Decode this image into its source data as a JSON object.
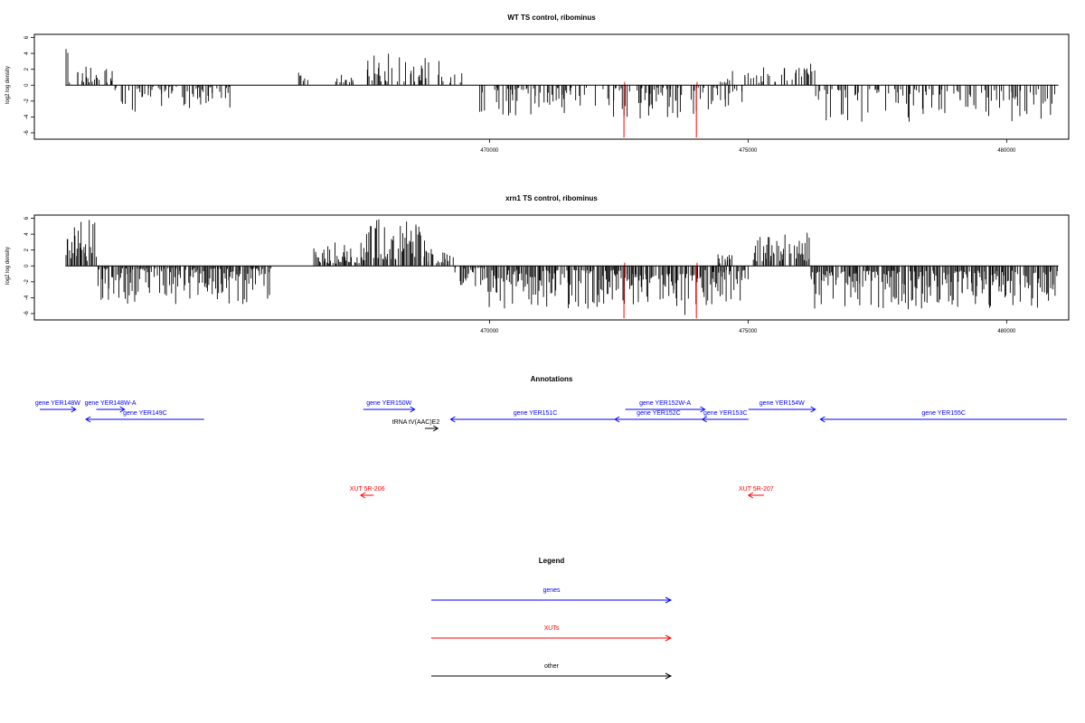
{
  "chart_data": [
    {
      "type": "bar",
      "title": "WT TS control, ribominus",
      "xlabel": "",
      "ylabel": "log2 log density",
      "xlim": [
        461200,
        481200
      ],
      "ylim": [
        -6.8,
        6.4
      ],
      "xticks": [
        470000,
        475000,
        480000
      ],
      "yticks": [
        6,
        4,
        2,
        0,
        -2,
        -4,
        -6
      ],
      "red_lines": [
        472600,
        474000
      ],
      "series_color": "#000000",
      "red_color": "#ff0000",
      "seed": 7,
      "density": 0.45,
      "regions": [
        {
          "x": [
            461800,
            462200
          ],
          "sign": 1,
          "min": 0.3,
          "max": 5.3
        },
        {
          "x": [
            462200,
            462750
          ],
          "sign": 1,
          "min": 0.3,
          "max": 2.2
        },
        {
          "x": [
            462750,
            463400
          ],
          "sign": -1,
          "min": 0.3,
          "max": 3.8
        },
        {
          "x": [
            463400,
            465000
          ],
          "sign": -1,
          "min": 0.2,
          "max": 3.0
        },
        {
          "x": [
            466300,
            466500
          ],
          "sign": 1,
          "min": 0.5,
          "max": 2.2
        },
        {
          "x": [
            467000,
            467400
          ],
          "sign": 1,
          "min": 0.3,
          "max": 1.6
        },
        {
          "x": [
            467600,
            468900
          ],
          "sign": 1,
          "min": 0.4,
          "max": 4.0
        },
        {
          "x": [
            469000,
            469500
          ],
          "sign": 1,
          "min": 0.3,
          "max": 3.6
        },
        {
          "x": [
            469800,
            472600
          ],
          "sign": -1,
          "min": 0.3,
          "max": 4.0
        },
        {
          "x": [
            472600,
            474900
          ],
          "sign": -1,
          "min": 0.3,
          "max": 4.2
        },
        {
          "x": [
            474400,
            474700
          ],
          "sign": 1,
          "min": 0.3,
          "max": 2.2
        },
        {
          "x": [
            474900,
            476000
          ],
          "sign": 1,
          "min": 0.3,
          "max": 2.4
        },
        {
          "x": [
            476000,
            476300
          ],
          "sign": 1,
          "min": 1.0,
          "max": 3.3
        },
        {
          "x": [
            476300,
            481000
          ],
          "sign": -1,
          "min": 0.5,
          "max": 5.0
        }
      ]
    },
    {
      "type": "bar",
      "title": "xrn1 TS control, ribominus",
      "xlabel": "",
      "ylabel": "log2 log density",
      "xlim": [
        461200,
        481200
      ],
      "ylim": [
        -6.8,
        6.4
      ],
      "xticks": [
        470000,
        475000,
        480000
      ],
      "yticks": [
        6,
        4,
        2,
        0,
        -2,
        -4,
        -6
      ],
      "red_lines": [
        472600,
        474000
      ],
      "series_color": "#000000",
      "red_color": "#ff0000",
      "seed": 23,
      "density": 0.85,
      "regions": [
        {
          "x": [
            461800,
            462400
          ],
          "sign": 1,
          "min": 0.5,
          "max": 5.8
        },
        {
          "x": [
            462400,
            465800
          ],
          "sign": -1,
          "min": 0.3,
          "max": 4.8
        },
        {
          "x": [
            466600,
            467600
          ],
          "sign": 1,
          "min": 0.3,
          "max": 3.0
        },
        {
          "x": [
            467600,
            468800
          ],
          "sign": 1,
          "min": 0.8,
          "max": 6.0
        },
        {
          "x": [
            468800,
            469300
          ],
          "sign": 1,
          "min": 0.3,
          "max": 2.2
        },
        {
          "x": [
            469300,
            469900
          ],
          "sign": -1,
          "min": 0.2,
          "max": 2.8
        },
        {
          "x": [
            469900,
            472600
          ],
          "sign": -1,
          "min": 0.5,
          "max": 5.5
        },
        {
          "x": [
            472600,
            474000
          ],
          "sign": -1,
          "min": 1.0,
          "max": 6.8
        },
        {
          "x": [
            474000,
            475000
          ],
          "sign": -1,
          "min": 0.5,
          "max": 5.0
        },
        {
          "x": [
            474400,
            474700
          ],
          "sign": 1,
          "min": 0.3,
          "max": 1.5
        },
        {
          "x": [
            475100,
            476200
          ],
          "sign": 1,
          "min": 0.6,
          "max": 4.8
        },
        {
          "x": [
            476200,
            481000
          ],
          "sign": -1,
          "min": 0.6,
          "max": 5.5
        }
      ]
    }
  ],
  "annotations": {
    "title": "Annotations",
    "colors": {
      "genes": "#0000ff",
      "xuts": "#ff0000",
      "other": "#000000"
    },
    "features": [
      {
        "label": "gene YER148W",
        "start": 461200,
        "end": 461900,
        "dir": "right",
        "row": 0,
        "kind": "genes"
      },
      {
        "label": "gene YER148W-A",
        "start": 462300,
        "end": 462850,
        "dir": "right",
        "row": 0,
        "kind": "genes"
      },
      {
        "label": "gene YER149C",
        "start": 462100,
        "end": 464400,
        "dir": "left",
        "row": 1,
        "kind": "genes"
      },
      {
        "label": "gene YER150W",
        "start": 467500,
        "end": 468500,
        "dir": "right",
        "row": 0,
        "kind": "genes"
      },
      {
        "label": "tRNA tV(AAC)E2",
        "start": 468700,
        "end": 468950,
        "dir": "right",
        "row": 2,
        "kind": "other"
      },
      {
        "label": "gene YER151C",
        "start": 469200,
        "end": 472500,
        "dir": "left",
        "row": 1,
        "kind": "genes"
      },
      {
        "label": "gene YER152W-A",
        "start": 472600,
        "end": 474150,
        "dir": "right",
        "row": 0,
        "kind": "genes"
      },
      {
        "label": "gene YER152C",
        "start": 472400,
        "end": 474100,
        "dir": "left",
        "row": 1,
        "kind": "genes"
      },
      {
        "label": "gene YER153C",
        "start": 474100,
        "end": 475000,
        "dir": "left",
        "row": 1,
        "kind": "genes"
      },
      {
        "label": "gene YER154W",
        "start": 475000,
        "end": 476300,
        "dir": "right",
        "row": 0,
        "kind": "genes"
      },
      {
        "label": "gene YER155C",
        "start": 476400,
        "end": 481200,
        "dir": "left",
        "row": 1,
        "kind": "genes"
      },
      {
        "label": "XUT 5R-206",
        "start": 467450,
        "end": 467700,
        "dir": "left",
        "row": 3,
        "kind": "xuts"
      },
      {
        "label": "XUT 5R-207",
        "start": 475000,
        "end": 475300,
        "dir": "left",
        "row": 3,
        "kind": "xuts"
      }
    ]
  },
  "legend": {
    "title": "Legend",
    "items": [
      {
        "label": "genes",
        "color": "#0000ff"
      },
      {
        "label": "XUTs",
        "color": "#ff0000"
      },
      {
        "label": "other",
        "color": "#000000"
      }
    ]
  }
}
